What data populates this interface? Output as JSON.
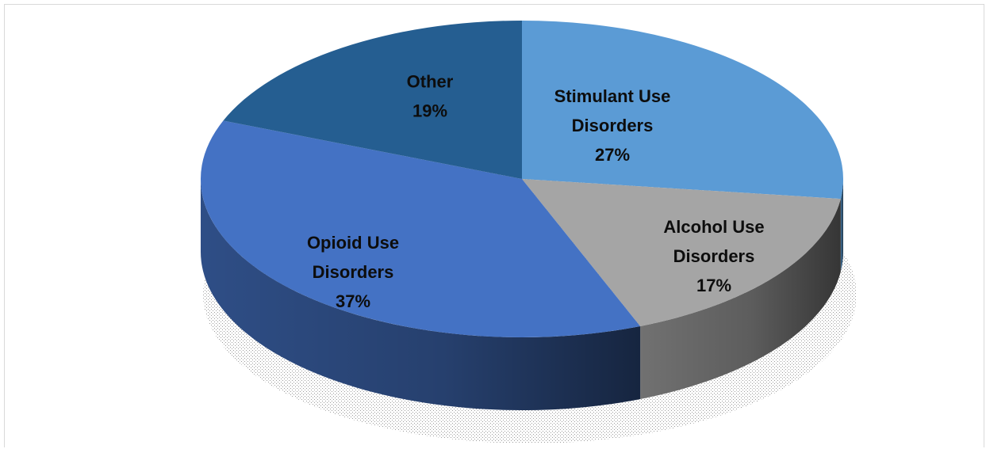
{
  "chart_data": {
    "type": "pie",
    "title": "",
    "slices": [
      {
        "label_lines": [
          "Stimulant Use",
          "Disorders",
          "27%"
        ],
        "value": 27,
        "color": "#5B9BD5"
      },
      {
        "label_lines": [
          "Alcohol Use",
          "Disorders",
          "17%"
        ],
        "value": 17,
        "color": "#A5A5A5"
      },
      {
        "label_lines": [
          "Opioid Use",
          "Disorders",
          "37%"
        ],
        "value": 37,
        "color": "#4472C4"
      },
      {
        "label_lines": [
          "Other",
          "19%"
        ],
        "value": 19,
        "color": "#255E91"
      }
    ]
  }
}
